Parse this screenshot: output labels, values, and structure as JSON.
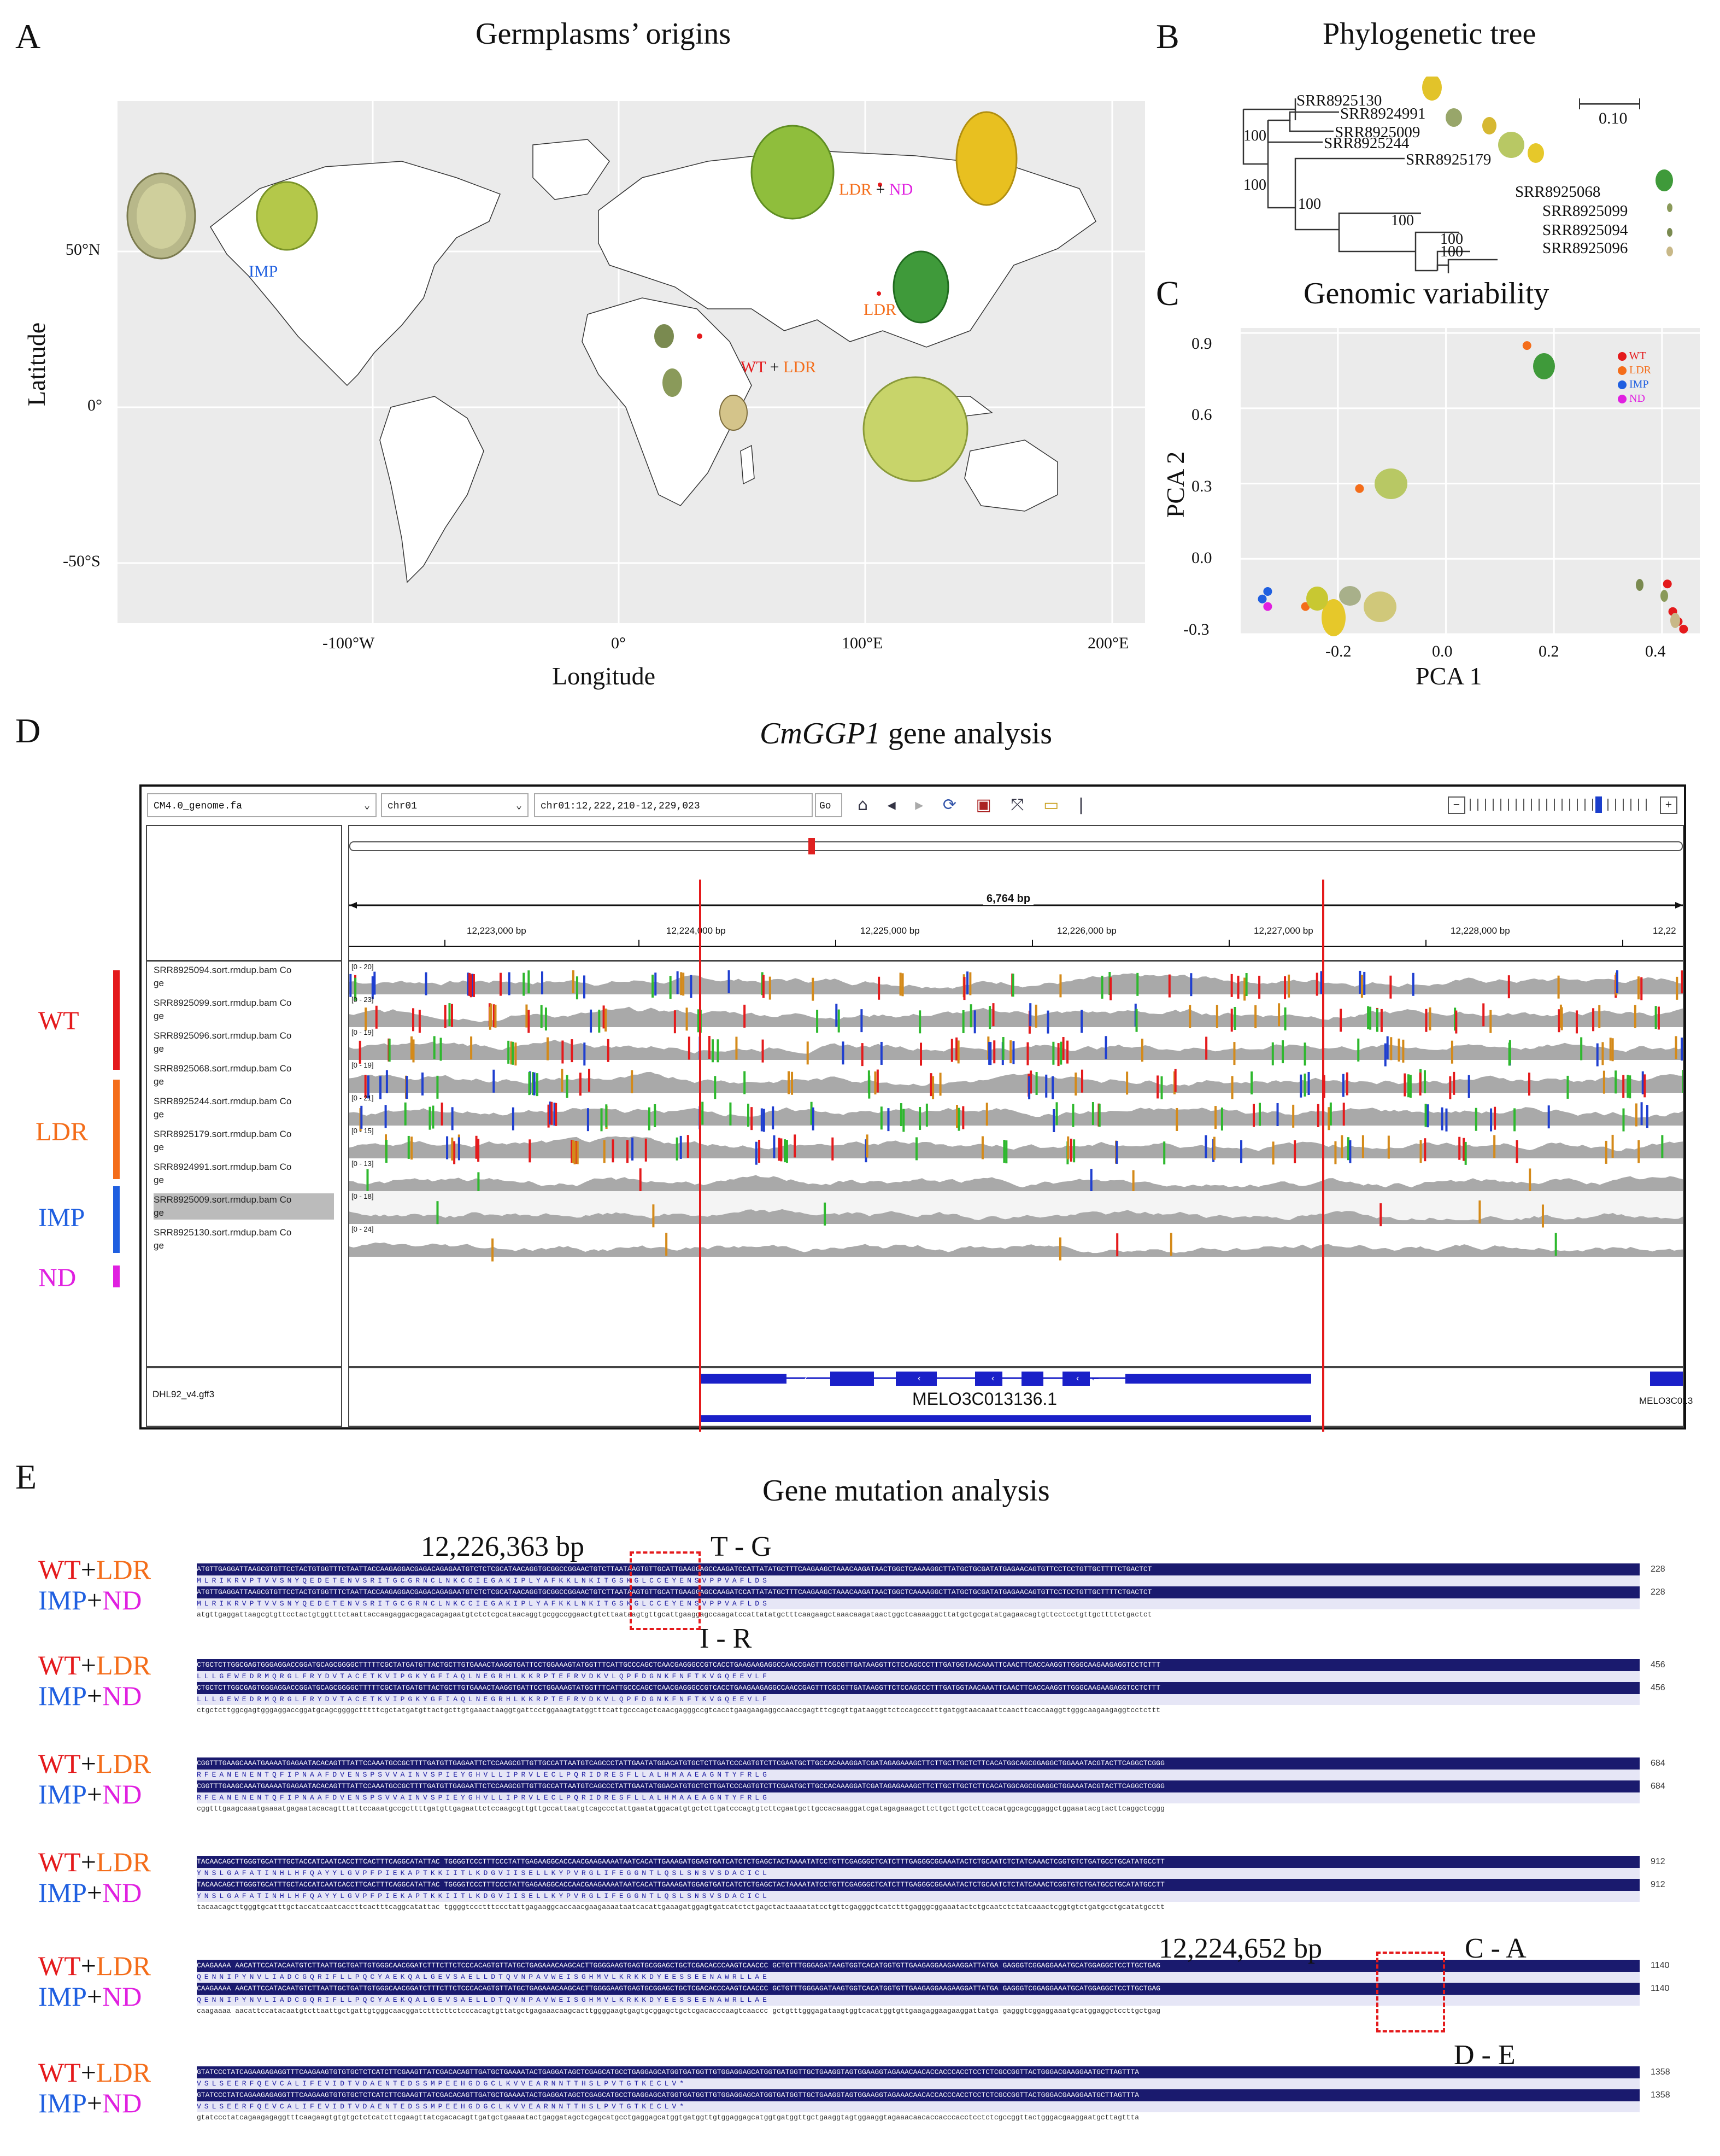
{
  "panelA": {
    "letter": "A",
    "title": "Germplasms’ origins",
    "xlabel": "Longitude",
    "ylabel": "Latitude",
    "xticks": [
      "-100°W",
      "0°",
      "100°E",
      "200°E"
    ],
    "yticks": [
      "50°N",
      "0°",
      "-50°S"
    ],
    "labels": {
      "imp": "IMP",
      "ldr_nd_1": "LDR",
      "ldr_nd_plus": "+",
      "ldr_nd_2": "ND",
      "ldr": "LDR",
      "wt_ldr_1": "WT",
      "wt_ldr_plus": "+",
      "wt_ldr_2": "LDR"
    }
  },
  "panelB": {
    "letter": "B",
    "title": "Phylogenetic tree",
    "scale": "0.10",
    "leaves": [
      "SRR8925130",
      "SRR8924991",
      "SRR8925009",
      "SRR8925244",
      "SRR8925179",
      "SRR8925068",
      "SRR8925099",
      "SRR8925094",
      "SRR8925096"
    ],
    "bootstraps": [
      "100",
      "100",
      "100",
      "100",
      "100",
      "100"
    ]
  },
  "panelC": {
    "letter": "C",
    "title": "Genomic variability",
    "legend": [
      {
        "label": "WT",
        "color": "#e41a1c"
      },
      {
        "label": "LDR",
        "color": "#f46d1a"
      },
      {
        "label": "IMP",
        "color": "#1f5fe0"
      },
      {
        "label": "ND",
        "color": "#e020e0"
      }
    ]
  },
  "chart_data": {
    "type": "scatter",
    "title": "Genomic variability",
    "xlabel": "PCA 1",
    "ylabel": "PCA 2",
    "xlim": [
      -0.38,
      0.47
    ],
    "ylim": [
      -0.3,
      0.92
    ],
    "xticks": [
      "-0.2",
      "0.0",
      "0.2",
      "0.4"
    ],
    "yticks": [
      "0.9",
      "0.6",
      "0.3",
      "0.0",
      "-0.3"
    ],
    "series": [
      {
        "name": "WT",
        "color": "#e41a1c",
        "x": [
          0.41,
          0.42,
          0.43,
          0.44
        ],
        "y": [
          -0.1,
          -0.21,
          -0.25,
          -0.28
        ]
      },
      {
        "name": "LDR",
        "color": "#f46d1a",
        "x": [
          0.15,
          -0.16,
          -0.26
        ],
        "y": [
          0.85,
          0.28,
          -0.19
        ]
      },
      {
        "name": "IMP",
        "color": "#1f5fe0",
        "x": [
          -0.33,
          -0.34
        ],
        "y": [
          -0.13,
          -0.16
        ]
      },
      {
        "name": "ND",
        "color": "#e020e0",
        "x": [
          -0.33
        ],
        "y": [
          -0.19
        ]
      }
    ]
  },
  "panelD": {
    "letter": "D",
    "title_italic": "CmGGP1",
    "title_rest": " gene analysis",
    "genome_select": "CM4.0_genome.fa",
    "chrom_select": "chr01",
    "locus": "chr01:12,222,210-12,229,023",
    "go": "Go",
    "span": "6,764 bp",
    "ruler": [
      "12,223,000 bp",
      "12,224,000 bp",
      "12,225,000 bp",
      "12,226,000 bp",
      "12,227,000 bp",
      "12,228,000 bp",
      "12,22"
    ],
    "tracks": [
      {
        "name": "SRR8925094.sort.rmdup.bam Co",
        "suffix": "ge",
        "range": "[0 - 20]"
      },
      {
        "name": "SRR8925099.sort.rmdup.bam Co",
        "suffix": "ge",
        "range": "[0 - 23]"
      },
      {
        "name": "SRR8925096.sort.rmdup.bam Co",
        "suffix": "ge",
        "range": "[0 - 19]"
      },
      {
        "name": "SRR8925068.sort.rmdup.bam Co",
        "suffix": "ge",
        "range": "[0 - 19]"
      },
      {
        "name": "SRR8925244.sort.rmdup.bam Co",
        "suffix": "ge",
        "range": "[0 - 21]"
      },
      {
        "name": "SRR8925179.sort.rmdup.bam Co",
        "suffix": "ge",
        "range": "[0 - 15]"
      },
      {
        "name": "SRR8924991.sort.rmdup.bam Co",
        "suffix": "ge",
        "range": "[0 - 13]"
      },
      {
        "name": "SRR8925009.sort.rmdup.bam Co",
        "suffix": "ge",
        "range": "[0 - 18]"
      },
      {
        "name": "SRR8925130.sort.rmdup.bam Co",
        "suffix": "ge",
        "range": "[0 - 24]"
      }
    ],
    "groups": [
      "WT",
      "LDR",
      "IMP",
      "ND"
    ],
    "annotation_track": "DHL92_v4.gff3",
    "gene": "MELO3C013136.1",
    "gene_right": "MELO3C013"
  },
  "panelE": {
    "letter": "E",
    "title": "Gene mutation analysis",
    "group1_a": "WT",
    "group1_plus": "+",
    "group1_b": "LDR",
    "group2_a": "IMP",
    "group2_plus": "+",
    "group2_b": "ND",
    "pos1": "12,226,363 bp",
    "mut1": "T - G",
    "aa1": "I - R",
    "pos2": "12,224,652 bp",
    "mut2": "C - A",
    "aa2": "D - E",
    "blocks": [
      {
        "num": "228",
        "seq": "ATGTTGAGGATTAAGCGTGTTCCTACTGTGGTTTCTAATTACCAAGAGGACGAGACAGAGAATGTCTCTCGCATAACAGGTGCGGCCGGAACTGTCTTAATAAGTGTTGCATTGAAGGAGCCAAGATCCATTATATGCTTTCAAGAAGCTAAACAAGATAACTGGCTCAAAAGGCTTATGCTGCGATATGAGAACAGTGTTCCTCCTGTTGCTTTTCTGACTCT",
        "aa": "MLRIKRVPTVVSNYQEDETENVSRITGCGRNCLNKCCIEGAKIPLYAFKKLNKITGSKGLCCEYENSVPPVAFLDS",
        "cons": "atgttgaggattaagcgtgttcctactgtggtttctaattaccaagaggacgagacagagaatgtctctcgcataacaggtgcggccggaactgtcttaataagtgttgcattgaaggagccaagatccattatatgctttcaagaagctaaacaagataactggctcaaaaggcttatgctgcgatatgagaacagtgttcctcctgttgcttttctgactct"
      },
      {
        "num": "456",
        "seq": "CTGCTCTTGGCGAGTGGGAGGACCGGATGCAGCGGGGCTTTTTCGCTATGATGTTACTGCTTGTGAAACTAAGGTGATTCCTGGAAAGTATGGTTTCATTGCCCAGCTCAACGAGGGCCGTCACCTGAAGAAGAGGCCAACCGAGTTTCGCGTTGATAAGGTTCTCCAGCCCTTTGATGGTAACAAATTCAACTTCACCAAGGTTGGGCAAGAAGAGGTCCTCTTT",
        "aa": "LLLGEWEDRMQRGLFRYDVTACETKVIPGKYGFIAQLNEGRHLKKRPTEFRVDKVLQPFDGNKFNFTKVGQEEVLF",
        "cons": "ctgctcttggcgagtgggaggaccggatgcagcggggctttttcgctatgatgttactgcttgtgaaactaaggtgattcctggaaagtatggtttcattgcccagctcaacgagggccgtcacctgaagaagaggccaaccgagtttcgcgttgataaggttctccagccctttgatggtaacaaattcaacttcaccaaggttgggcaagaagaggtcctcttt"
      },
      {
        "num": "684",
        "seq": "CGGTTTGAAGCAAATGAAAATGAGAATACACAGTTTATTCCAAATGCCGCTTTTGATGTTGAGAATTCTCCAAGCGTTGTTGCCATTAATGTCAGCCCTATTGAATATGGACATGTGCTCTTGATCCCAGTGTCTTCGAATGCTTGCCACAAAGGATCGATAGAGAAAGCTTCTTGCTTGCTCTTCACATGGCAGCGGAGGCTGGAAATACGTACTTCAGGCTCGGG",
        "aa": "RFEANENENTQFIPNAAFDVENSPSVVAINVSPIEYGHVLLIPRVLECLPQRIDRESFLLALHMAAEAGNTYFRLG",
        "cons": "cggtttgaagcaaatgaaaatgagaatacacagtttattccaaatgccgcttttgatgttgagaattctccaagcgttgttgccattaatgtcagccctattgaatatggacatgtgctcttgatcccagtgtcttcgaatgcttgccacaaaggatcgatagagaaagcttcttgcttgctcttcacatggcagcggaggctggaaatacgtacttcaggctcggg"
      },
      {
        "num": "912",
        "seq": "TACAACAGCTTGGGTGCATTTGCTACCATCAATCACCTTCACTTTCAGGCATATTAC TGGGGTCCCTTTCCCTATTGAGAAGGCACCAACGAAGAAAATAATCACATTGAAAGATGGAGTGATCATCTCTGAGCTACTAAAATATCCTGTTCGAGGGCTCATCTTTGAGGGCGGAAATACTCTGCAATCTCTATCAAACTCGGTGTCTGATGCCTGCATATGCCTT",
        "aa": "YNSLGAFATINHLHFQAYYLGVPFPIEKAPTKKIITLKDGVIISELLKYPVRGLIFEGGNTLQSLSNSVSDACICL",
        "cons": "tacaacagcttgggtgcatttgctaccatcaatcaccttcactttcaggcatattac tggggtccctttccctattgagaaggcaccaacgaagaaaataatcacattgaaagatggagtgatcatctctgagctactaaaatatcctgttcgagggctcatctttgagggcggaaatactctgcaatctctatcaaactcggtgtctgatgcctgcatatgcctt"
      },
      {
        "num": "1140",
        "seq": "CAAGAAAA AACATTCCATACAATGTCTTAATTGCTGATTGTGGGCAACGGATCTTTCTTCTCCCACAGTGTTATGCTGAGAAACAAGCACTTGGGGAAGTGAGTGCGGAGCTGCTCGACACCCAAGTCAACCC GCTGTTTGGGAGATAAGTGGTCACATGGTGTTGAAGAGGAAGAAGGATTATGA GAGGGTCGGAGGAAATGCATGGAGGCTCCTTGCTGAG",
        "aa": "QENNIPYNVLIADCGQRIFLLPQCYAEKQALGEVSAELLDTQVNPAVWEISGHMVLKRKKDYEESSEENAWRLLAE",
        "cons": "caagaaaa aacattccatacaatgtcttaattgctgattgtgggcaacggatctttcttctcccacagtgttatgctgagaaacaagcacttggggaagtgagtgcggagctgctcgacacccaagtcaaccc gctgtttgggagataagtggtcacatggtgttgaagaggaagaaggattatga gagggtcggaggaaatgcatggaggctccttgctgag"
      },
      {
        "num": "1358",
        "seq": "GTATCCCTATCAGAAGAGAGGTTTCAAGAAGTGTGTGCTCTCATCTTCGAAGTTATCGACACAGTTGATGCTGAAAATACTGAGGATAGCTCGAGCATGCCTGAGGAGCATGGTGATGGTTGTGGAGGAGCATGGTGATGGTTGCTGAAGGTAGTGGAAGGTAGAAACAACACCACCCACCTCCTCTCGCCGGTTACTGGGACGAAGGAATGCTTAGTTTA",
        "aa": "VSLSEERFQEVCALIFEVIDTVDAENTEDSSMPEEHGDGCLKVVEARNNTTHSLPVTGTKECLV*",
        "cons": "gtatccctatcagaagagaggtttcaagaagtgtgtgctctcatcttcgaagttatcgacacagttgatgctgaaaatactgaggatagctcgagcatgcctgaggagcatggtgatggttgtggaggagcatggtgatggttgctgaaggtagtggaaggtagaaacaacaccacccacctcctctcgccggttactgggacgaaggaatgcttagttta"
      }
    ]
  }
}
